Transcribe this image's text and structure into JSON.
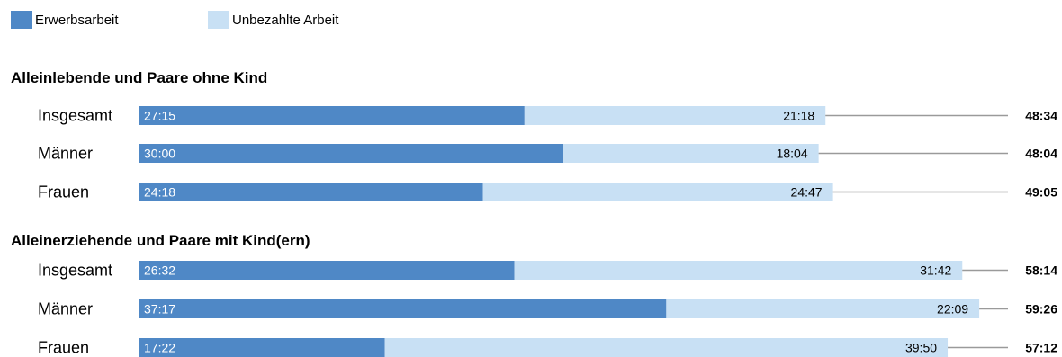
{
  "chart_data": {
    "type": "bar",
    "orientation": "horizontal",
    "stacked": true,
    "legend": {
      "placement": "top-left",
      "entries": [
        {
          "name": "Erwerbsarbeit",
          "color": "#4f88c6"
        },
        {
          "name": "Unbezahlte Arbeit",
          "color": "#c8e0f4"
        }
      ]
    },
    "colors": {
      "paid": "#4f88c6",
      "unpaid": "#c8e0f4",
      "leader": "#9a9a9a"
    },
    "xlim_hours": [
      0,
      62
    ],
    "groups": [
      {
        "title": "Alleinlebende und Paare ohne Kind",
        "rows": [
          {
            "label": "Insgesamt",
            "paid": "27:15",
            "unpaid": "21:18",
            "total": "48:34"
          },
          {
            "label": "Männer",
            "paid": "30:00",
            "unpaid": "18:04",
            "total": "48:04"
          },
          {
            "label": "Frauen",
            "paid": "24:18",
            "unpaid": "24:47",
            "total": "49:05"
          }
        ]
      },
      {
        "title": "Alleinerziehende und Paare mit Kind(ern)",
        "rows": [
          {
            "label": "Insgesamt",
            "paid": "26:32",
            "unpaid": "31:42",
            "total": "58:14"
          },
          {
            "label": "Männer",
            "paid": "37:17",
            "unpaid": "22:09",
            "total": "59:26"
          },
          {
            "label": "Frauen",
            "paid": "17:22",
            "unpaid": "39:50",
            "total": "57:12"
          }
        ]
      }
    ]
  }
}
